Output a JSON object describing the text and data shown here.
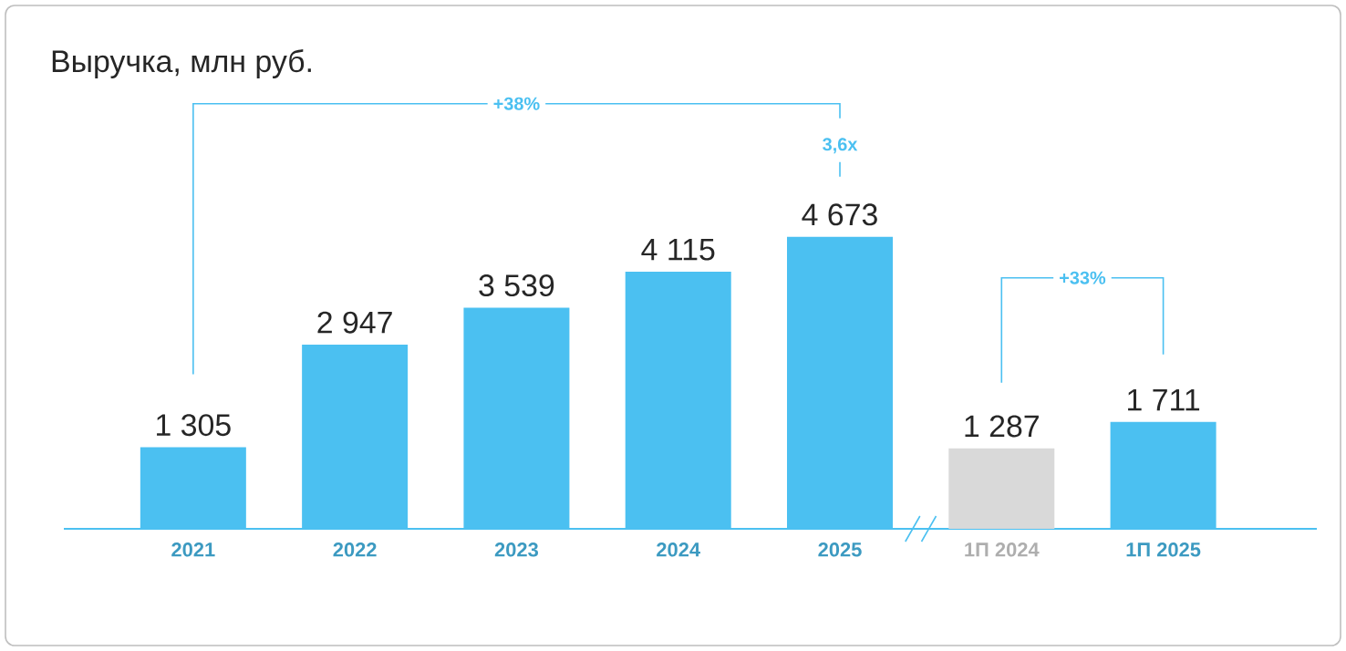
{
  "chart_data": {
    "type": "bar",
    "title": "Выручка, млн руб.",
    "categories": [
      "2021",
      "2022",
      "2023",
      "2024",
      "2025",
      "1П 2024",
      "1П 2025"
    ],
    "values": [
      1305,
      2947,
      3539,
      4115,
      4673,
      1287,
      1711
    ],
    "colors": [
      "#4bc0f1",
      "#4bc0f1",
      "#4bc0f1",
      "#4bc0f1",
      "#4bc0f1",
      "#d9d9d9",
      "#4bc0f1"
    ],
    "value_labels": [
      "1 305",
      "2 947",
      "3 539",
      "4 115",
      "4 673",
      "1 287",
      "1 711"
    ],
    "annotations": [
      "+38%",
      "3,6x",
      "+33%"
    ]
  }
}
